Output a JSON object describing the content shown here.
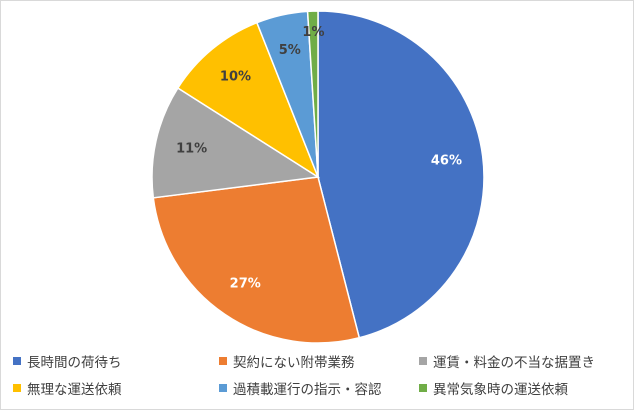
{
  "chart_data": {
    "type": "pie",
    "categories": [
      "長時間の荷待ち",
      "契約にない附帯業務",
      "運賃・料金の不当な据置き",
      "無理な運送依頼",
      "過積載運行の指示・容認",
      "異常気象時の運送依頼"
    ],
    "values": [
      46,
      27,
      11,
      10,
      5,
      1
    ],
    "data_labels": [
      "46%",
      "27%",
      "11%",
      "10%",
      "5%",
      "1%"
    ],
    "colors": [
      "#4472C4",
      "#ED7D31",
      "#A5A5A5",
      "#FFC000",
      "#5B9BD5",
      "#70AD47"
    ],
    "label_colors": [
      "#ffffff",
      "#ffffff",
      "#404040",
      "#404040",
      "#404040",
      "#404040"
    ],
    "start_angle_deg": 0,
    "direction": "clockwise",
    "legend_position": "bottom"
  }
}
